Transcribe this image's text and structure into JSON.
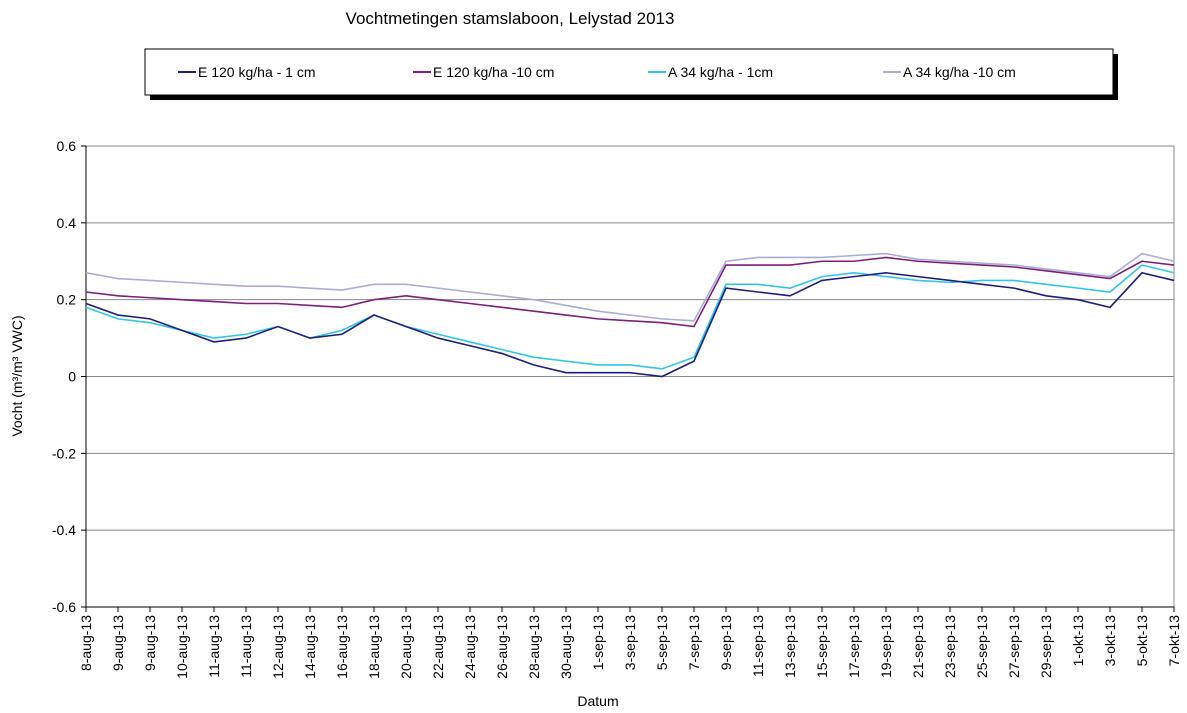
{
  "chart_data": {
    "type": "line",
    "title": "Vochtmetingen stamslaboon, Lelystad 2013",
    "xlabel": "Datum",
    "ylabel": "Vocht (m³/m³ VWC)",
    "categories": [
      "8-aug-13",
      "9-aug-13",
      "9-aug-13",
      "10-aug-13",
      "11-aug-13",
      "11-aug-13",
      "12-aug-13",
      "14-aug-13",
      "16-aug-13",
      "18-aug-13",
      "20-aug-13",
      "22-aug-13",
      "24-aug-13",
      "26-aug-13",
      "28-aug-13",
      "30-aug-13",
      "1-sep-13",
      "3-sep-13",
      "5-sep-13",
      "7-sep-13",
      "9-sep-13",
      "11-sep-13",
      "13-sep-13",
      "15-sep-13",
      "17-sep-13",
      "19-sep-13",
      "21-sep-13",
      "23-sep-13",
      "25-sep-13",
      "27-sep-13",
      "29-sep-13",
      "1-okt-13",
      "3-okt-13",
      "5-okt-13",
      "7-okt-13"
    ],
    "series": [
      {
        "name": "E 120 kg/ha - 1 cm",
        "color": "#1f1f7a",
        "values": [
          0.19,
          0.16,
          0.15,
          0.12,
          0.09,
          0.1,
          0.13,
          0.1,
          0.11,
          0.16,
          0.13,
          0.1,
          0.08,
          0.06,
          0.03,
          0.01,
          0.01,
          0.01,
          0.0,
          0.04,
          0.23,
          0.22,
          0.21,
          0.25,
          0.26,
          0.27,
          0.26,
          0.25,
          0.24,
          0.23,
          0.21,
          0.2,
          0.18,
          0.27,
          0.25
        ]
      },
      {
        "name": "E 120 kg/ha -10 cm",
        "color": "#7b1f7b",
        "values": [
          0.22,
          0.21,
          0.205,
          0.2,
          0.195,
          0.19,
          0.19,
          0.185,
          0.18,
          0.2,
          0.21,
          0.2,
          0.19,
          0.18,
          0.17,
          0.16,
          0.15,
          0.145,
          0.14,
          0.13,
          0.29,
          0.29,
          0.29,
          0.3,
          0.3,
          0.31,
          0.3,
          0.295,
          0.29,
          0.285,
          0.275,
          0.265,
          0.255,
          0.3,
          0.29
        ]
      },
      {
        "name": "A 34 kg/ha - 1cm",
        "color": "#33c3e8",
        "values": [
          0.18,
          0.15,
          0.14,
          0.12,
          0.1,
          0.11,
          0.13,
          0.1,
          0.12,
          0.16,
          0.13,
          0.11,
          0.09,
          0.07,
          0.05,
          0.04,
          0.03,
          0.03,
          0.02,
          0.05,
          0.24,
          0.24,
          0.23,
          0.26,
          0.27,
          0.26,
          0.25,
          0.245,
          0.25,
          0.25,
          0.24,
          0.23,
          0.22,
          0.29,
          0.27
        ]
      },
      {
        "name": "A 34 kg/ha -10 cm",
        "color": "#a9acd6",
        "values": [
          0.27,
          0.255,
          0.25,
          0.245,
          0.24,
          0.235,
          0.235,
          0.23,
          0.225,
          0.24,
          0.24,
          0.23,
          0.22,
          0.21,
          0.2,
          0.185,
          0.17,
          0.16,
          0.15,
          0.145,
          0.3,
          0.31,
          0.31,
          0.31,
          0.315,
          0.32,
          0.305,
          0.3,
          0.295,
          0.29,
          0.28,
          0.27,
          0.26,
          0.32,
          0.3
        ]
      }
    ],
    "ylim": [
      -0.6,
      0.6
    ],
    "yticks": [
      -0.6,
      -0.4,
      -0.2,
      0,
      0.2,
      0.4,
      0.6
    ],
    "grid": true,
    "legend": "top"
  }
}
